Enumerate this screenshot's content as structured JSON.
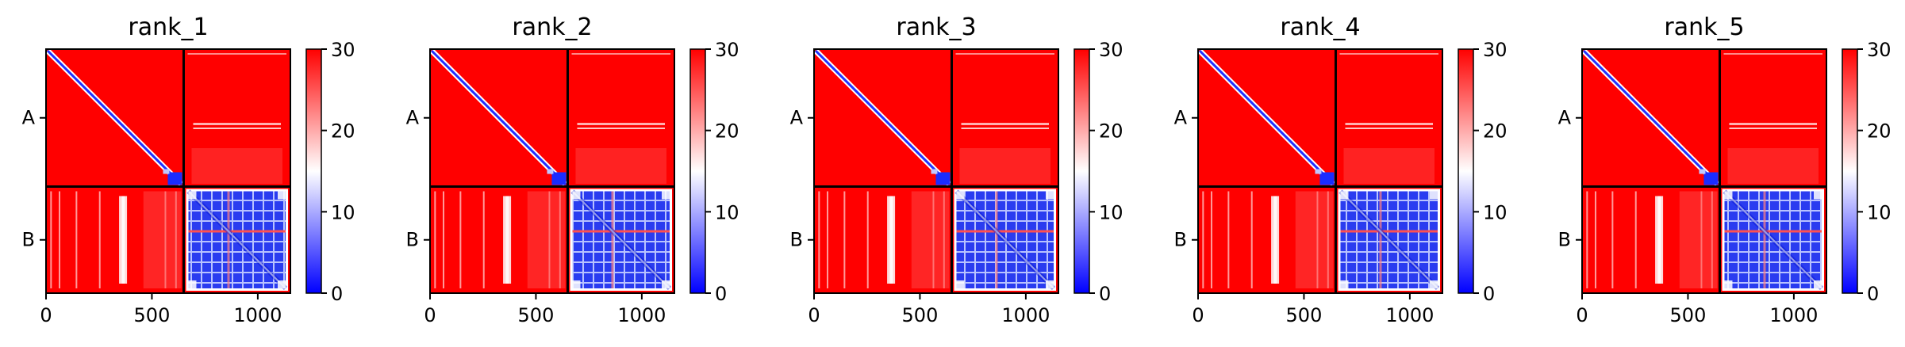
{
  "chart_data": [
    {
      "type": "heatmap",
      "title": "rank_1",
      "chains": [
        "A",
        "B"
      ],
      "chain_boundary": 650,
      "x_ticks": [
        0,
        500,
        1000
      ],
      "xlim": [
        0,
        1154
      ],
      "colorbar": {
        "ticks": [
          0,
          10,
          20,
          30
        ],
        "range": [
          0,
          30
        ],
        "colors": [
          "#0000ff",
          "#ffffff",
          "#ff0000"
        ]
      }
    },
    {
      "type": "heatmap",
      "title": "rank_2",
      "chains": [
        "A",
        "B"
      ],
      "chain_boundary": 650,
      "x_ticks": [
        0,
        500,
        1000
      ],
      "xlim": [
        0,
        1154
      ],
      "colorbar": {
        "ticks": [
          0,
          10,
          20,
          30
        ],
        "range": [
          0,
          30
        ],
        "colors": [
          "#0000ff",
          "#ffffff",
          "#ff0000"
        ]
      }
    },
    {
      "type": "heatmap",
      "title": "rank_3",
      "chains": [
        "A",
        "B"
      ],
      "chain_boundary": 650,
      "x_ticks": [
        0,
        500,
        1000
      ],
      "xlim": [
        0,
        1154
      ],
      "colorbar": {
        "ticks": [
          0,
          10,
          20,
          30
        ],
        "range": [
          0,
          30
        ],
        "colors": [
          "#0000ff",
          "#ffffff",
          "#ff0000"
        ]
      }
    },
    {
      "type": "heatmap",
      "title": "rank_4",
      "chains": [
        "A",
        "B"
      ],
      "chain_boundary": 650,
      "x_ticks": [
        0,
        500,
        1000
      ],
      "xlim": [
        0,
        1154
      ],
      "colorbar": {
        "ticks": [
          0,
          10,
          20,
          30
        ],
        "range": [
          0,
          30
        ],
        "colors": [
          "#0000ff",
          "#ffffff",
          "#ff0000"
        ]
      }
    },
    {
      "type": "heatmap",
      "title": "rank_5",
      "chains": [
        "A",
        "B"
      ],
      "chain_boundary": 650,
      "x_ticks": [
        0,
        500,
        1000
      ],
      "xlim": [
        0,
        1154
      ],
      "colorbar": {
        "ticks": [
          0,
          10,
          20,
          30
        ],
        "range": [
          0,
          30
        ],
        "colors": [
          "#0000ff",
          "#ffffff",
          "#ff0000"
        ]
      }
    }
  ]
}
